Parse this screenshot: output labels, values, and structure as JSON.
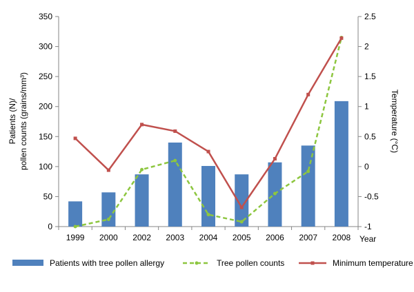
{
  "chart_data": {
    "type": "bar+line",
    "categories": [
      "1999",
      "2000",
      "2002",
      "2003",
      "2004",
      "2005",
      "2006",
      "2007",
      "2008"
    ],
    "xlabel": "Year",
    "ylabel_left": [
      "Patients (N)/",
      "pollen counts (grains/mm³)"
    ],
    "ylabel_right": "Temperature (°C)",
    "ylim_left": [
      0,
      350
    ],
    "yticks_left": [
      "0",
      "50",
      "100",
      "150",
      "200",
      "250",
      "300",
      "350"
    ],
    "ylim_right": [
      -1,
      2.5
    ],
    "yticks_right": [
      "-1",
      "-0.5",
      "0",
      "0.5",
      "1",
      "1.5",
      "2",
      "2.5"
    ],
    "grid": false,
    "legend_position": "bottom",
    "series": [
      {
        "name": "Patients with tree pollen allergy",
        "kind": "bar",
        "axis": "left",
        "color": "#4f81bd",
        "values": [
          42,
          57,
          87,
          140,
          101,
          87,
          107,
          135,
          209
        ]
      },
      {
        "name": "Tree pollen counts",
        "kind": "line-dashed",
        "axis": "left",
        "color": "#8dc63f",
        "values": [
          0,
          12,
          95,
          110,
          20,
          8,
          55,
          92,
          315
        ]
      },
      {
        "name": "Minimum temperature",
        "kind": "line",
        "axis": "right",
        "color": "#c0504d",
        "values": [
          0.47,
          -0.06,
          0.7,
          0.59,
          0.25,
          -0.68,
          0.13,
          1.2,
          2.14
        ]
      }
    ]
  }
}
